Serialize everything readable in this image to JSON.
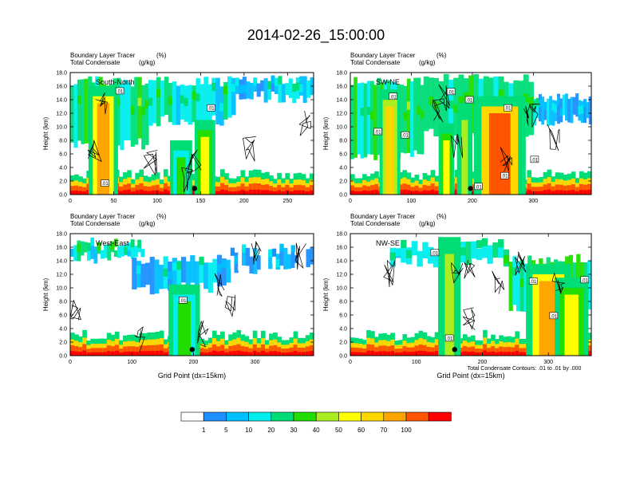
{
  "title": "2014-02-26_15:00:00",
  "colorbar": {
    "levels": [
      "1",
      "5",
      "10",
      "20",
      "30",
      "40",
      "50",
      "60",
      "70",
      "100"
    ],
    "colors": [
      "#ffffff",
      "#1e90ff",
      "#00bfff",
      "#00eeee",
      "#00dd77",
      "#22dd00",
      "#aaee22",
      "#ffff00",
      "#ffd700",
      "#ffa500",
      "#ff5500",
      "#ff0000"
    ]
  },
  "footnote": "Total Condensate Contours: .01 to .01 by .000",
  "chart_data": [
    {
      "type": "heatmap",
      "id": "south-north",
      "label": "South-North",
      "field_title": "Boundary Layer Tracer",
      "field_units": "(%)",
      "contour_title": "Total Condensate",
      "contour_units": "(g/kg)",
      "ylabel": "Height (km)",
      "xlabel": "",
      "xlim": [
        0,
        280
      ],
      "ylim": [
        0,
        18
      ],
      "xticks": [
        "0",
        "50",
        "100",
        "150",
        "200",
        "250"
      ],
      "xtick_values": [
        0,
        50,
        100,
        150,
        200,
        250
      ],
      "yticks": [
        "0.0",
        "2.0",
        "4.0",
        "6.0",
        "8.0",
        "10.0",
        "12.0",
        "14.0",
        "16.0",
        "18.0"
      ],
      "contour_labels": [
        {
          "text": ".01",
          "x": 57,
          "y": 15.3
        },
        {
          "text": ".01",
          "x": 162,
          "y": 12.8
        },
        {
          "text": ".01",
          "x": 40,
          "y": 1.7
        }
      ],
      "columns": [
        {
          "x": [
            28,
            48
          ],
          "top": 14.5,
          "level": 9
        },
        {
          "x": [
            148,
            162
          ],
          "top": 9.5,
          "level": 7
        },
        {
          "x": [
            120,
            135
          ],
          "top": 6.5,
          "level": 5
        }
      ],
      "anvil": [
        {
          "x": [
            0,
            90
          ],
          "y": [
            6.5,
            17.5
          ],
          "level": 4
        },
        {
          "x": [
            90,
            190
          ],
          "y": [
            10,
            17.5
          ],
          "level": 3
        },
        {
          "x": [
            190,
            280
          ],
          "y": [
            13.5,
            17.5
          ],
          "level": 2
        }
      ],
      "marker_x": 143
    },
    {
      "type": "heatmap",
      "id": "sw-ne",
      "label": "SW-NE",
      "field_title": "Boundary Layer Tracer",
      "field_units": "(%)",
      "contour_title": "Total Condensate",
      "contour_units": "(g/kg)",
      "ylabel": "Height (km)",
      "xlabel": "",
      "xlim": [
        0,
        395
      ],
      "ylim": [
        0,
        18
      ],
      "xticks": [
        "0",
        "100",
        "200",
        "300"
      ],
      "xtick_values": [
        0,
        100,
        200,
        300
      ],
      "yticks": [
        "0.0",
        "2.0",
        "4.0",
        "6.0",
        "8.0",
        "10.0",
        "12.0",
        "14.0",
        "16.0",
        "18.0"
      ],
      "contour_labels": [
        {
          "text": ".01",
          "x": 165,
          "y": 15.2
        },
        {
          "text": ".01",
          "x": 195,
          "y": 14.0
        },
        {
          "text": ".01",
          "x": 70,
          "y": 14.5
        },
        {
          "text": ".01",
          "x": 45,
          "y": 9.3
        },
        {
          "text": ".01",
          "x": 90,
          "y": 8.8
        },
        {
          "text": ".01",
          "x": 258,
          "y": 12.8
        },
        {
          "text": ".01",
          "x": 302,
          "y": 5.2
        },
        {
          "text": ".01",
          "x": 253,
          "y": 2.8
        },
        {
          "text": ".01",
          "x": 210,
          "y": 1.2
        }
      ],
      "columns": [
        {
          "x": [
            220,
            270
          ],
          "top": 13.0,
          "level": 10
        },
        {
          "x": [
            55,
            75
          ],
          "top": 14.0,
          "level": 8
        },
        {
          "x": [
            150,
            165
          ],
          "top": 9.0,
          "level": 7
        },
        {
          "x": [
            180,
            195
          ],
          "top": 12.0,
          "level": 6
        }
      ],
      "anvil": [
        {
          "x": [
            0,
            120
          ],
          "y": [
            5,
            17.5
          ],
          "level": 4
        },
        {
          "x": [
            120,
            300
          ],
          "y": [
            8,
            18
          ],
          "level": 4
        },
        {
          "x": [
            300,
            395
          ],
          "y": [
            10,
            15
          ],
          "level": 2
        }
      ],
      "marker_x": 197
    },
    {
      "type": "heatmap",
      "id": "west-east",
      "label": "West-East",
      "field_title": "Boundary Layer Tracer",
      "field_units": "(%)",
      "contour_title": "Total Condensate",
      "contour_units": "(g/kg)",
      "ylabel": "Height (km)",
      "xlabel": "Grid Point (dx=15km)",
      "xlim": [
        0,
        395
      ],
      "ylim": [
        0,
        18
      ],
      "xticks": [
        "0",
        "100",
        "200",
        "300"
      ],
      "xtick_values": [
        0,
        100,
        200,
        300
      ],
      "yticks": [
        "0.0",
        "2.0",
        "4.0",
        "6.0",
        "8.0",
        "10.0",
        "12.0",
        "14.0",
        "16.0",
        "18.0"
      ],
      "contour_labels": [
        {
          "text": ".01",
          "x": 183,
          "y": 8.2
        }
      ],
      "columns": [
        {
          "x": [
            170,
            200
          ],
          "top": 9.0,
          "level": 5
        }
      ],
      "anvil": [
        {
          "x": [
            0,
            120
          ],
          "y": [
            13.5,
            17
          ],
          "level": 3
        },
        {
          "x": [
            100,
            260
          ],
          "y": [
            9,
            15
          ],
          "level": 2
        },
        {
          "x": [
            260,
            395
          ],
          "y": [
            12,
            16
          ],
          "level": 1
        }
      ],
      "marker_x": 198
    },
    {
      "type": "heatmap",
      "id": "nw-se",
      "label": "NW-SE",
      "field_title": "Boundary Layer Tracer",
      "field_units": "(%)",
      "contour_title": "Total Condensate",
      "contour_units": "(g/kg)",
      "ylabel": "Height (km)",
      "xlabel": "Grid Point (dx=15km)",
      "xlim": [
        0,
        365
      ],
      "ylim": [
        0,
        18
      ],
      "xticks": [
        "0",
        "100",
        "200",
        "300"
      ],
      "xtick_values": [
        0,
        100,
        200,
        300
      ],
      "yticks": [
        "0.0",
        "2.0",
        "4.0",
        "6.0",
        "8.0",
        "10.0",
        "12.0",
        "14.0",
        "16.0",
        "18.0"
      ],
      "contour_labels": [
        {
          "text": ".01",
          "x": 128,
          "y": 15.2
        },
        {
          "text": ".01",
          "x": 277,
          "y": 11.0
        },
        {
          "text": ".01",
          "x": 355,
          "y": 11.2
        },
        {
          "text": ".01",
          "x": 308,
          "y": 5.9
        },
        {
          "text": ".01",
          "x": 150,
          "y": 2.6
        }
      ],
      "columns": [
        {
          "x": [
            140,
            160
          ],
          "top": 16.0,
          "level": 6
        },
        {
          "x": [
            280,
            320
          ],
          "top": 12.0,
          "level": 9
        },
        {
          "x": [
            320,
            350
          ],
          "top": 10.0,
          "level": 7
        }
      ],
      "anvil": [
        {
          "x": [
            60,
            240
          ],
          "y": [
            13,
            17
          ],
          "level": 3
        },
        {
          "x": [
            240,
            365
          ],
          "y": [
            6,
            15
          ],
          "level": 4
        }
      ],
      "marker_x": 158
    }
  ]
}
